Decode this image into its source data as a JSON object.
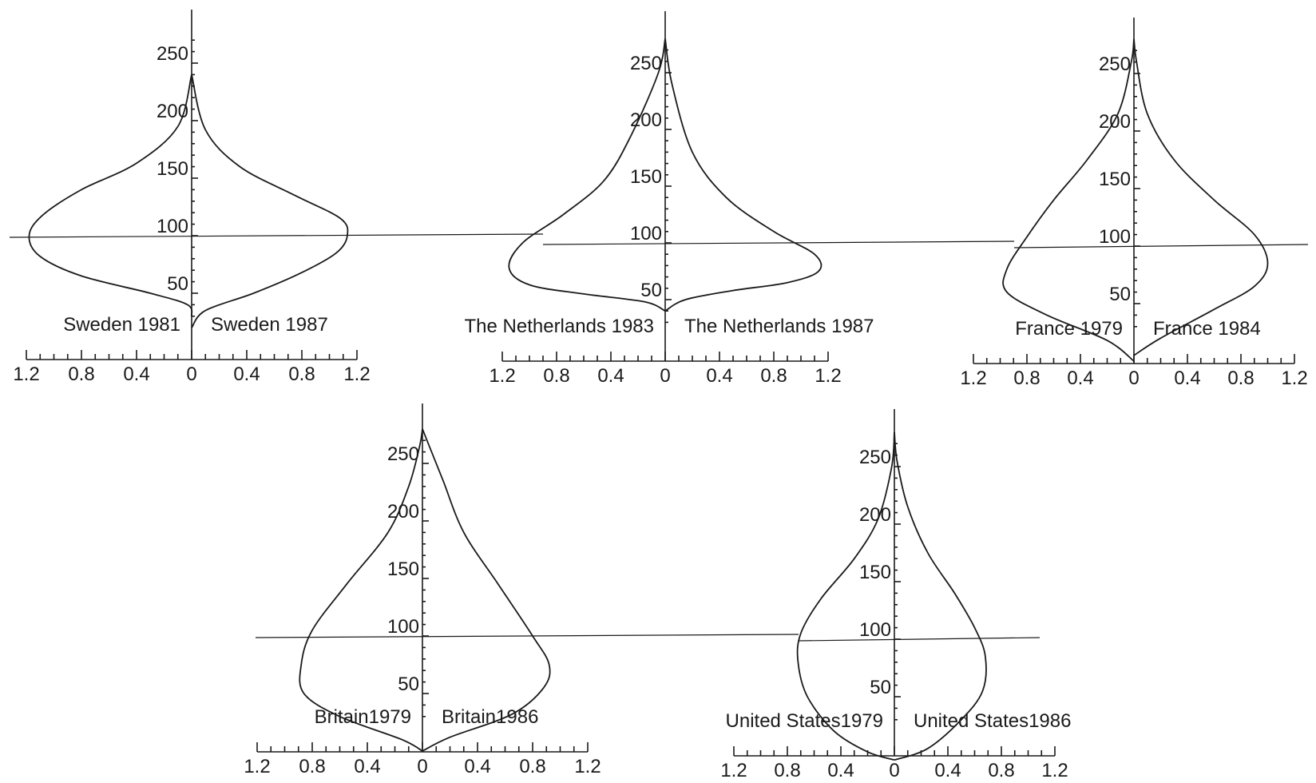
{
  "chart_data": [
    {
      "type": "area",
      "left_label": "Sweden 1981",
      "right_label": "Sweden 1987",
      "y_ticks": [
        50,
        100,
        150,
        200,
        250
      ],
      "x_tick_labels": [
        "1.2",
        "0.8",
        "0.4",
        "0",
        "0.4",
        "0.8",
        "1.2"
      ],
      "xlim": [
        0,
        1.2
      ],
      "ylim": [
        0,
        280
      ],
      "reference_y": 100,
      "series": [
        {
          "name": "Sweden 1981",
          "x": [
            0,
            0.03,
            0.3,
            0.8,
            1.1,
            1.18,
            1.08,
            0.8,
            0.4,
            0.1,
            0
          ],
          "y": [
            30,
            40,
            50,
            65,
            82,
            100,
            118,
            140,
            163,
            195,
            240
          ]
        },
        {
          "name": "Sweden 1987",
          "x": [
            0,
            0.1,
            0.45,
            0.8,
            1.05,
            1.13,
            1.08,
            0.75,
            0.35,
            0.1,
            0
          ],
          "y": [
            20,
            35,
            50,
            68,
            85,
            100,
            115,
            135,
            160,
            192,
            240
          ]
        }
      ]
    },
    {
      "type": "area",
      "left_label": "The Netherlands 1983",
      "right_label": "The Netherlands 1987",
      "y_ticks": [
        50,
        100,
        150,
        200,
        250
      ],
      "x_tick_labels": [
        "1.2",
        "0.8",
        "0.4",
        "0",
        "0.4",
        "0.8",
        "1.2"
      ],
      "xlim": [
        0,
        1.2
      ],
      "ylim": [
        0,
        280
      ],
      "reference_y": 100,
      "series": [
        {
          "name": "The Netherlands 1983",
          "x": [
            0,
            0.15,
            0.6,
            1.0,
            1.15,
            1.05,
            0.75,
            0.45,
            0.25,
            0.05,
            0
          ],
          "y": [
            40,
            48,
            55,
            63,
            78,
            100,
            125,
            155,
            195,
            250,
            280
          ]
        },
        {
          "name": "The Netherlands 1987",
          "x": [
            0,
            0.15,
            0.5,
            0.9,
            1.13,
            1.1,
            0.8,
            0.45,
            0.2,
            0.05,
            0
          ],
          "y": [
            40,
            50,
            58,
            65,
            75,
            90,
            110,
            140,
            180,
            240,
            280
          ]
        }
      ]
    },
    {
      "type": "area",
      "left_label": "France 1979",
      "right_label": "France 1984",
      "y_ticks": [
        50,
        100,
        150,
        200,
        250
      ],
      "x_tick_labels": [
        "1.2",
        "0.8",
        "0.4",
        "0",
        "0.4",
        "0.8",
        "1.2"
      ],
      "xlim": [
        0,
        1.2
      ],
      "ylim": [
        0,
        280
      ],
      "reference_y": 100,
      "series": [
        {
          "name": "France 1979",
          "x": [
            0,
            0.2,
            0.65,
            0.95,
            0.95,
            0.8,
            0.6,
            0.35,
            0.12,
            0.02,
            0
          ],
          "y": [
            0,
            18,
            40,
            60,
            80,
            108,
            140,
            175,
            215,
            260,
            280
          ]
        },
        {
          "name": "France 1984",
          "x": [
            0,
            0.2,
            0.6,
            0.9,
            1.0,
            0.9,
            0.6,
            0.3,
            0.1,
            0.02,
            0
          ],
          "y": [
            5,
            20,
            45,
            65,
            85,
            110,
            140,
            175,
            215,
            260,
            280
          ]
        }
      ]
    },
    {
      "type": "area",
      "left_label": "Britain1979",
      "right_label": "Britain1986",
      "y_ticks": [
        50,
        100,
        150,
        200,
        250
      ],
      "x_tick_labels": [
        "1.2",
        "0.8",
        "0.4",
        "0",
        "0.4",
        "0.8",
        "1.2"
      ],
      "xlim": [
        0,
        1.2
      ],
      "ylim": [
        0,
        280
      ],
      "reference_y": 100,
      "series": [
        {
          "name": "Britain1979",
          "x": [
            0,
            0.15,
            0.6,
            0.86,
            0.88,
            0.8,
            0.55,
            0.25,
            0.1,
            0.02,
            0
          ],
          "y": [
            0,
            10,
            30,
            50,
            75,
            105,
            145,
            190,
            230,
            265,
            280
          ]
        },
        {
          "name": "Britain1986",
          "x": [
            0,
            0.2,
            0.65,
            0.88,
            0.92,
            0.8,
            0.55,
            0.3,
            0.15,
            0.05,
            0
          ],
          "y": [
            0,
            12,
            32,
            55,
            75,
            100,
            145,
            190,
            235,
            265,
            280
          ]
        }
      ]
    },
    {
      "type": "area",
      "left_label": "United States1979",
      "right_label": "United States1986",
      "y_ticks": [
        50,
        100,
        150,
        200,
        250
      ],
      "x_tick_labels": [
        "1.2",
        "0.8",
        "0.4",
        "0",
        "0.4",
        "0.8",
        "1.2"
      ],
      "xlim": [
        0,
        1.2
      ],
      "ylim": [
        0,
        280
      ],
      "reference_y": 100,
      "series": [
        {
          "name": "United States1979",
          "x": [
            0,
            0.2,
            0.45,
            0.65,
            0.72,
            0.7,
            0.55,
            0.3,
            0.12,
            0.02,
            0
          ],
          "y": [
            -5,
            2,
            20,
            50,
            80,
            105,
            135,
            170,
            205,
            250,
            280
          ]
        },
        {
          "name": "United States1986",
          "x": [
            0,
            0.25,
            0.5,
            0.66,
            0.68,
            0.6,
            0.45,
            0.25,
            0.1,
            0.02,
            0
          ],
          "y": [
            -5,
            5,
            30,
            55,
            85,
            110,
            140,
            175,
            215,
            255,
            280
          ]
        }
      ]
    }
  ]
}
